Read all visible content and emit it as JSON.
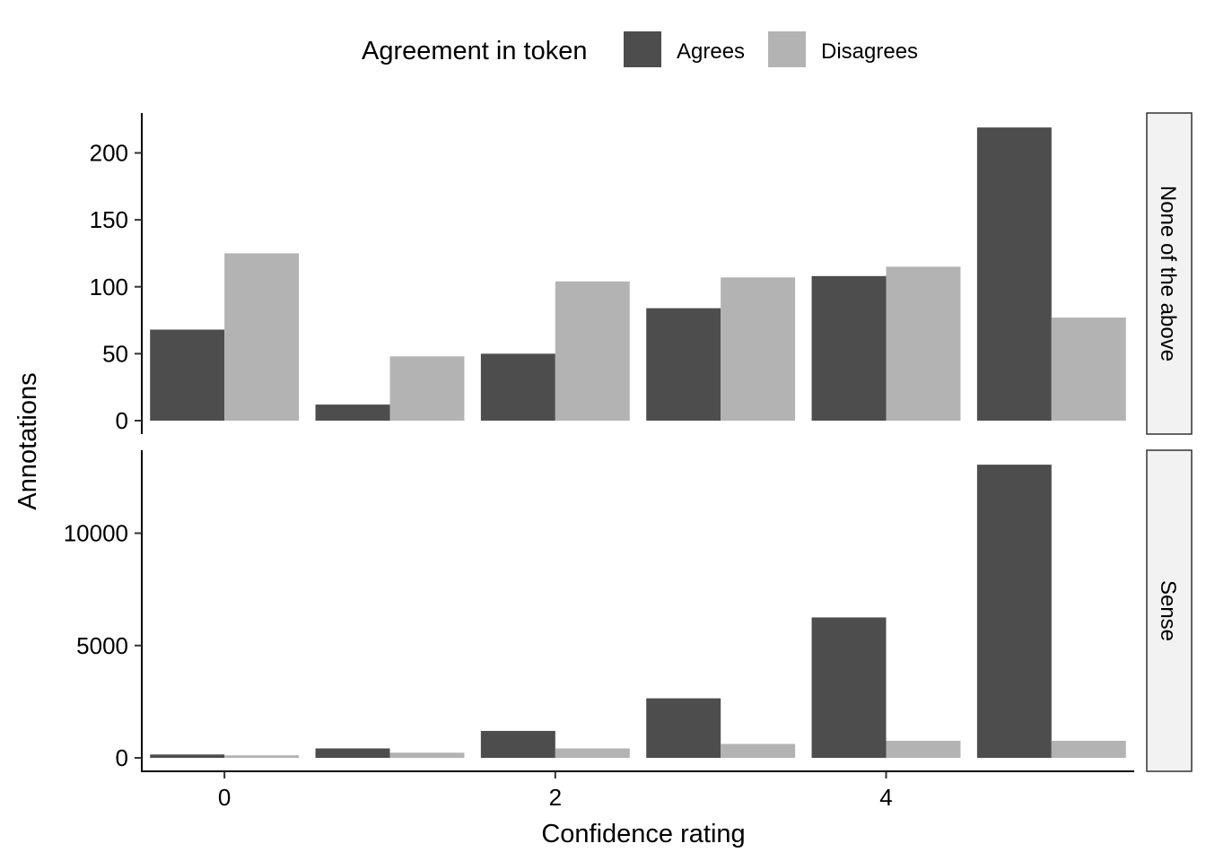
{
  "legend": {
    "title": "Agreement in token",
    "items": [
      {
        "label": "Agrees",
        "color": "#4d4d4d"
      },
      {
        "label": "Disagrees",
        "color": "#b3b3b3"
      }
    ]
  },
  "chart_data": {
    "type": "bar",
    "layout": "grouped bars, two facet rows with independent y scales, facet strips on right",
    "xlabel": "Confidence rating",
    "ylabel": "Annotations",
    "x": [
      0,
      1,
      2,
      3,
      4,
      5
    ],
    "xticks": [
      0,
      2,
      4
    ],
    "xlim": [
      -0.5,
      5.5
    ],
    "grid": false,
    "legend_position": "top",
    "series_names": [
      "Agrees",
      "Disagrees"
    ],
    "panels": [
      {
        "strip": "None of the above",
        "yticks": [
          0,
          50,
          100,
          150,
          200
        ],
        "ylim": [
          0,
          230
        ],
        "series": [
          {
            "name": "Agrees",
            "values": [
              68,
              12,
              50,
              84,
              108,
              219
            ]
          },
          {
            "name": "Disagrees",
            "values": [
              125,
              48,
              104,
              107,
              115,
              77
            ]
          }
        ]
      },
      {
        "strip": "Sense",
        "yticks": [
          0,
          5000,
          10000
        ],
        "ylim": [
          0,
          13500
        ],
        "series": [
          {
            "name": "Agrees",
            "values": [
              150,
              420,
              1200,
              2650,
              6250,
              13050
            ]
          },
          {
            "name": "Disagrees",
            "values": [
              110,
              230,
              420,
              620,
              760,
              760
            ]
          }
        ]
      }
    ]
  }
}
